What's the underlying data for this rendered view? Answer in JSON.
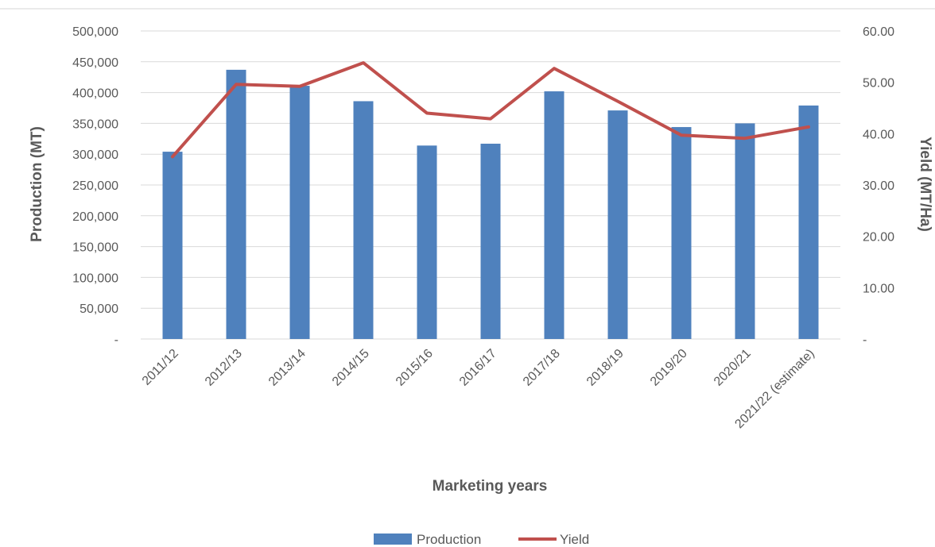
{
  "chart_data": {
    "type": "bar",
    "categories": [
      "2011/12",
      "2012/13",
      "2013/14",
      "2014/15",
      "2015/16",
      "2016/17",
      "2017/18",
      "2018/19",
      "2019/20",
      "2020/21",
      "2021/22 (estimate)"
    ],
    "series": [
      {
        "name": "Production",
        "type": "bar",
        "axis": "left",
        "color": "#4f81bd",
        "values": [
          304000,
          437000,
          411000,
          386000,
          314000,
          317000,
          402000,
          371000,
          344000,
          350000,
          379000
        ]
      },
      {
        "name": "Yield",
        "type": "line",
        "axis": "right",
        "color": "#c0504d",
        "values": [
          35.5,
          49.6,
          49.2,
          53.8,
          44.0,
          42.9,
          52.7,
          46.3,
          39.7,
          39.1,
          41.3
        ]
      }
    ],
    "xlabel": "Marketing years",
    "ylabel": "Production (MT)",
    "y2label": "Yield (MT/Ha)",
    "ylim": [
      0,
      500000
    ],
    "y2lim": [
      0,
      60
    ],
    "yticks": [
      "-",
      "50,000",
      "100,000",
      "150,000",
      "200,000",
      "250,000",
      "300,000",
      "350,000",
      "400,000",
      "450,000",
      "500,000"
    ],
    "y2ticks": [
      "-",
      "10.00",
      "20.00",
      "30.00",
      "40.00",
      "50.00",
      "60.00"
    ],
    "grid": true,
    "legend": "bottom-center"
  }
}
